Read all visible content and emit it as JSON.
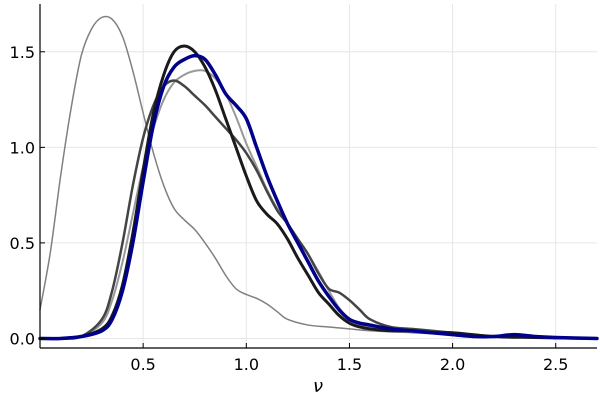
{
  "chart_data": {
    "type": "line",
    "title": "",
    "xlabel": "ν",
    "ylabel": "",
    "xlim": [
      0.0,
      2.7
    ],
    "ylim": [
      -0.05,
      1.75
    ],
    "grid": true,
    "legend": "none",
    "xticks": [
      0.5,
      1.0,
      1.5,
      2.0,
      2.5
    ],
    "xtick_labels": [
      "0.5",
      "1.0",
      "1.5",
      "2.0",
      "2.5"
    ],
    "yticks": [
      0.0,
      0.5,
      1.0,
      1.5
    ],
    "ytick_labels": [
      "0.0",
      "0.5",
      "1.0",
      "1.5"
    ],
    "series": [
      {
        "color": "#808080",
        "width": 1.5,
        "x": [
          0.0,
          0.05,
          0.1,
          0.15,
          0.2,
          0.25,
          0.3,
          0.35,
          0.4,
          0.45,
          0.5,
          0.55,
          0.6,
          0.65,
          0.7,
          0.75,
          0.8,
          0.85,
          0.9,
          0.95,
          1.0,
          1.05,
          1.1,
          1.15,
          1.2,
          1.3,
          1.4,
          1.5,
          1.6,
          1.8,
          2.0,
          2.2,
          2.4,
          2.7
        ],
        "y": [
          0.15,
          0.45,
          0.85,
          1.2,
          1.48,
          1.62,
          1.68,
          1.67,
          1.58,
          1.4,
          1.18,
          0.97,
          0.8,
          0.68,
          0.62,
          0.57,
          0.5,
          0.42,
          0.33,
          0.26,
          0.23,
          0.21,
          0.18,
          0.14,
          0.1,
          0.07,
          0.06,
          0.05,
          0.04,
          0.03,
          0.02,
          0.01,
          0.005,
          0.0
        ]
      },
      {
        "color": "#999999",
        "width": 2,
        "x": [
          0.0,
          0.1,
          0.2,
          0.3,
          0.35,
          0.4,
          0.45,
          0.5,
          0.55,
          0.6,
          0.65,
          0.7,
          0.75,
          0.8,
          0.85,
          0.9,
          0.95,
          1.0,
          1.05,
          1.1,
          1.15,
          1.2,
          1.25,
          1.3,
          1.35,
          1.4,
          1.45,
          1.5,
          1.55,
          1.6,
          1.7,
          1.8,
          1.9,
          2.0,
          2.2,
          2.4,
          2.7
        ],
        "y": [
          0.0,
          0.0,
          0.01,
          0.08,
          0.2,
          0.4,
          0.65,
          0.9,
          1.1,
          1.25,
          1.34,
          1.38,
          1.4,
          1.4,
          1.36,
          1.28,
          1.16,
          1.02,
          0.9,
          0.78,
          0.68,
          0.6,
          0.52,
          0.44,
          0.35,
          0.25,
          0.16,
          0.1,
          0.07,
          0.06,
          0.05,
          0.04,
          0.03,
          0.02,
          0.01,
          0.005,
          0.0
        ]
      },
      {
        "color": "#444444",
        "width": 2.5,
        "x": [
          0.0,
          0.1,
          0.2,
          0.3,
          0.35,
          0.4,
          0.45,
          0.5,
          0.55,
          0.6,
          0.65,
          0.7,
          0.75,
          0.8,
          0.85,
          0.9,
          0.95,
          1.0,
          1.05,
          1.1,
          1.15,
          1.2,
          1.25,
          1.3,
          1.35,
          1.4,
          1.45,
          1.5,
          1.55,
          1.6,
          1.7,
          1.8,
          1.9,
          2.0,
          2.2,
          2.4,
          2.7
        ],
        "y": [
          0.0,
          0.0,
          0.01,
          0.1,
          0.25,
          0.5,
          0.8,
          1.05,
          1.22,
          1.32,
          1.35,
          1.32,
          1.27,
          1.22,
          1.16,
          1.1,
          1.04,
          0.97,
          0.88,
          0.77,
          0.67,
          0.6,
          0.52,
          0.44,
          0.34,
          0.26,
          0.24,
          0.2,
          0.15,
          0.1,
          0.06,
          0.05,
          0.04,
          0.03,
          0.01,
          0.005,
          0.0
        ]
      },
      {
        "color": "#1a1a1a",
        "width": 3,
        "x": [
          0.0,
          0.1,
          0.2,
          0.3,
          0.35,
          0.4,
          0.45,
          0.5,
          0.55,
          0.6,
          0.65,
          0.7,
          0.75,
          0.8,
          0.85,
          0.9,
          0.95,
          1.0,
          1.05,
          1.1,
          1.15,
          1.2,
          1.25,
          1.3,
          1.35,
          1.4,
          1.45,
          1.5,
          1.55,
          1.6,
          1.7,
          1.8,
          1.9,
          2.0,
          2.2,
          2.4,
          2.7
        ],
        "y": [
          0.0,
          0.0,
          0.01,
          0.05,
          0.12,
          0.28,
          0.55,
          0.88,
          1.18,
          1.38,
          1.5,
          1.53,
          1.5,
          1.42,
          1.3,
          1.15,
          1.0,
          0.85,
          0.72,
          0.65,
          0.6,
          0.52,
          0.42,
          0.33,
          0.24,
          0.18,
          0.12,
          0.08,
          0.06,
          0.05,
          0.04,
          0.04,
          0.03,
          0.03,
          0.01,
          0.005,
          0.0
        ]
      },
      {
        "color": "#00008b",
        "width": 3.5,
        "x": [
          0.0,
          0.1,
          0.2,
          0.3,
          0.35,
          0.4,
          0.45,
          0.5,
          0.55,
          0.6,
          0.65,
          0.7,
          0.75,
          0.8,
          0.85,
          0.9,
          0.95,
          1.0,
          1.05,
          1.1,
          1.15,
          1.2,
          1.25,
          1.3,
          1.35,
          1.4,
          1.45,
          1.5,
          1.55,
          1.6,
          1.7,
          1.8,
          1.9,
          2.0,
          2.1,
          2.2,
          2.3,
          2.4,
          2.5,
          2.7
        ],
        "y": [
          0.0,
          0.0,
          0.01,
          0.04,
          0.1,
          0.25,
          0.5,
          0.82,
          1.12,
          1.32,
          1.42,
          1.46,
          1.48,
          1.46,
          1.38,
          1.28,
          1.22,
          1.15,
          1.0,
          0.85,
          0.72,
          0.6,
          0.5,
          0.4,
          0.3,
          0.22,
          0.15,
          0.1,
          0.08,
          0.07,
          0.05,
          0.04,
          0.03,
          0.02,
          0.01,
          0.01,
          0.02,
          0.01,
          0.005,
          0.0
        ]
      }
    ]
  }
}
